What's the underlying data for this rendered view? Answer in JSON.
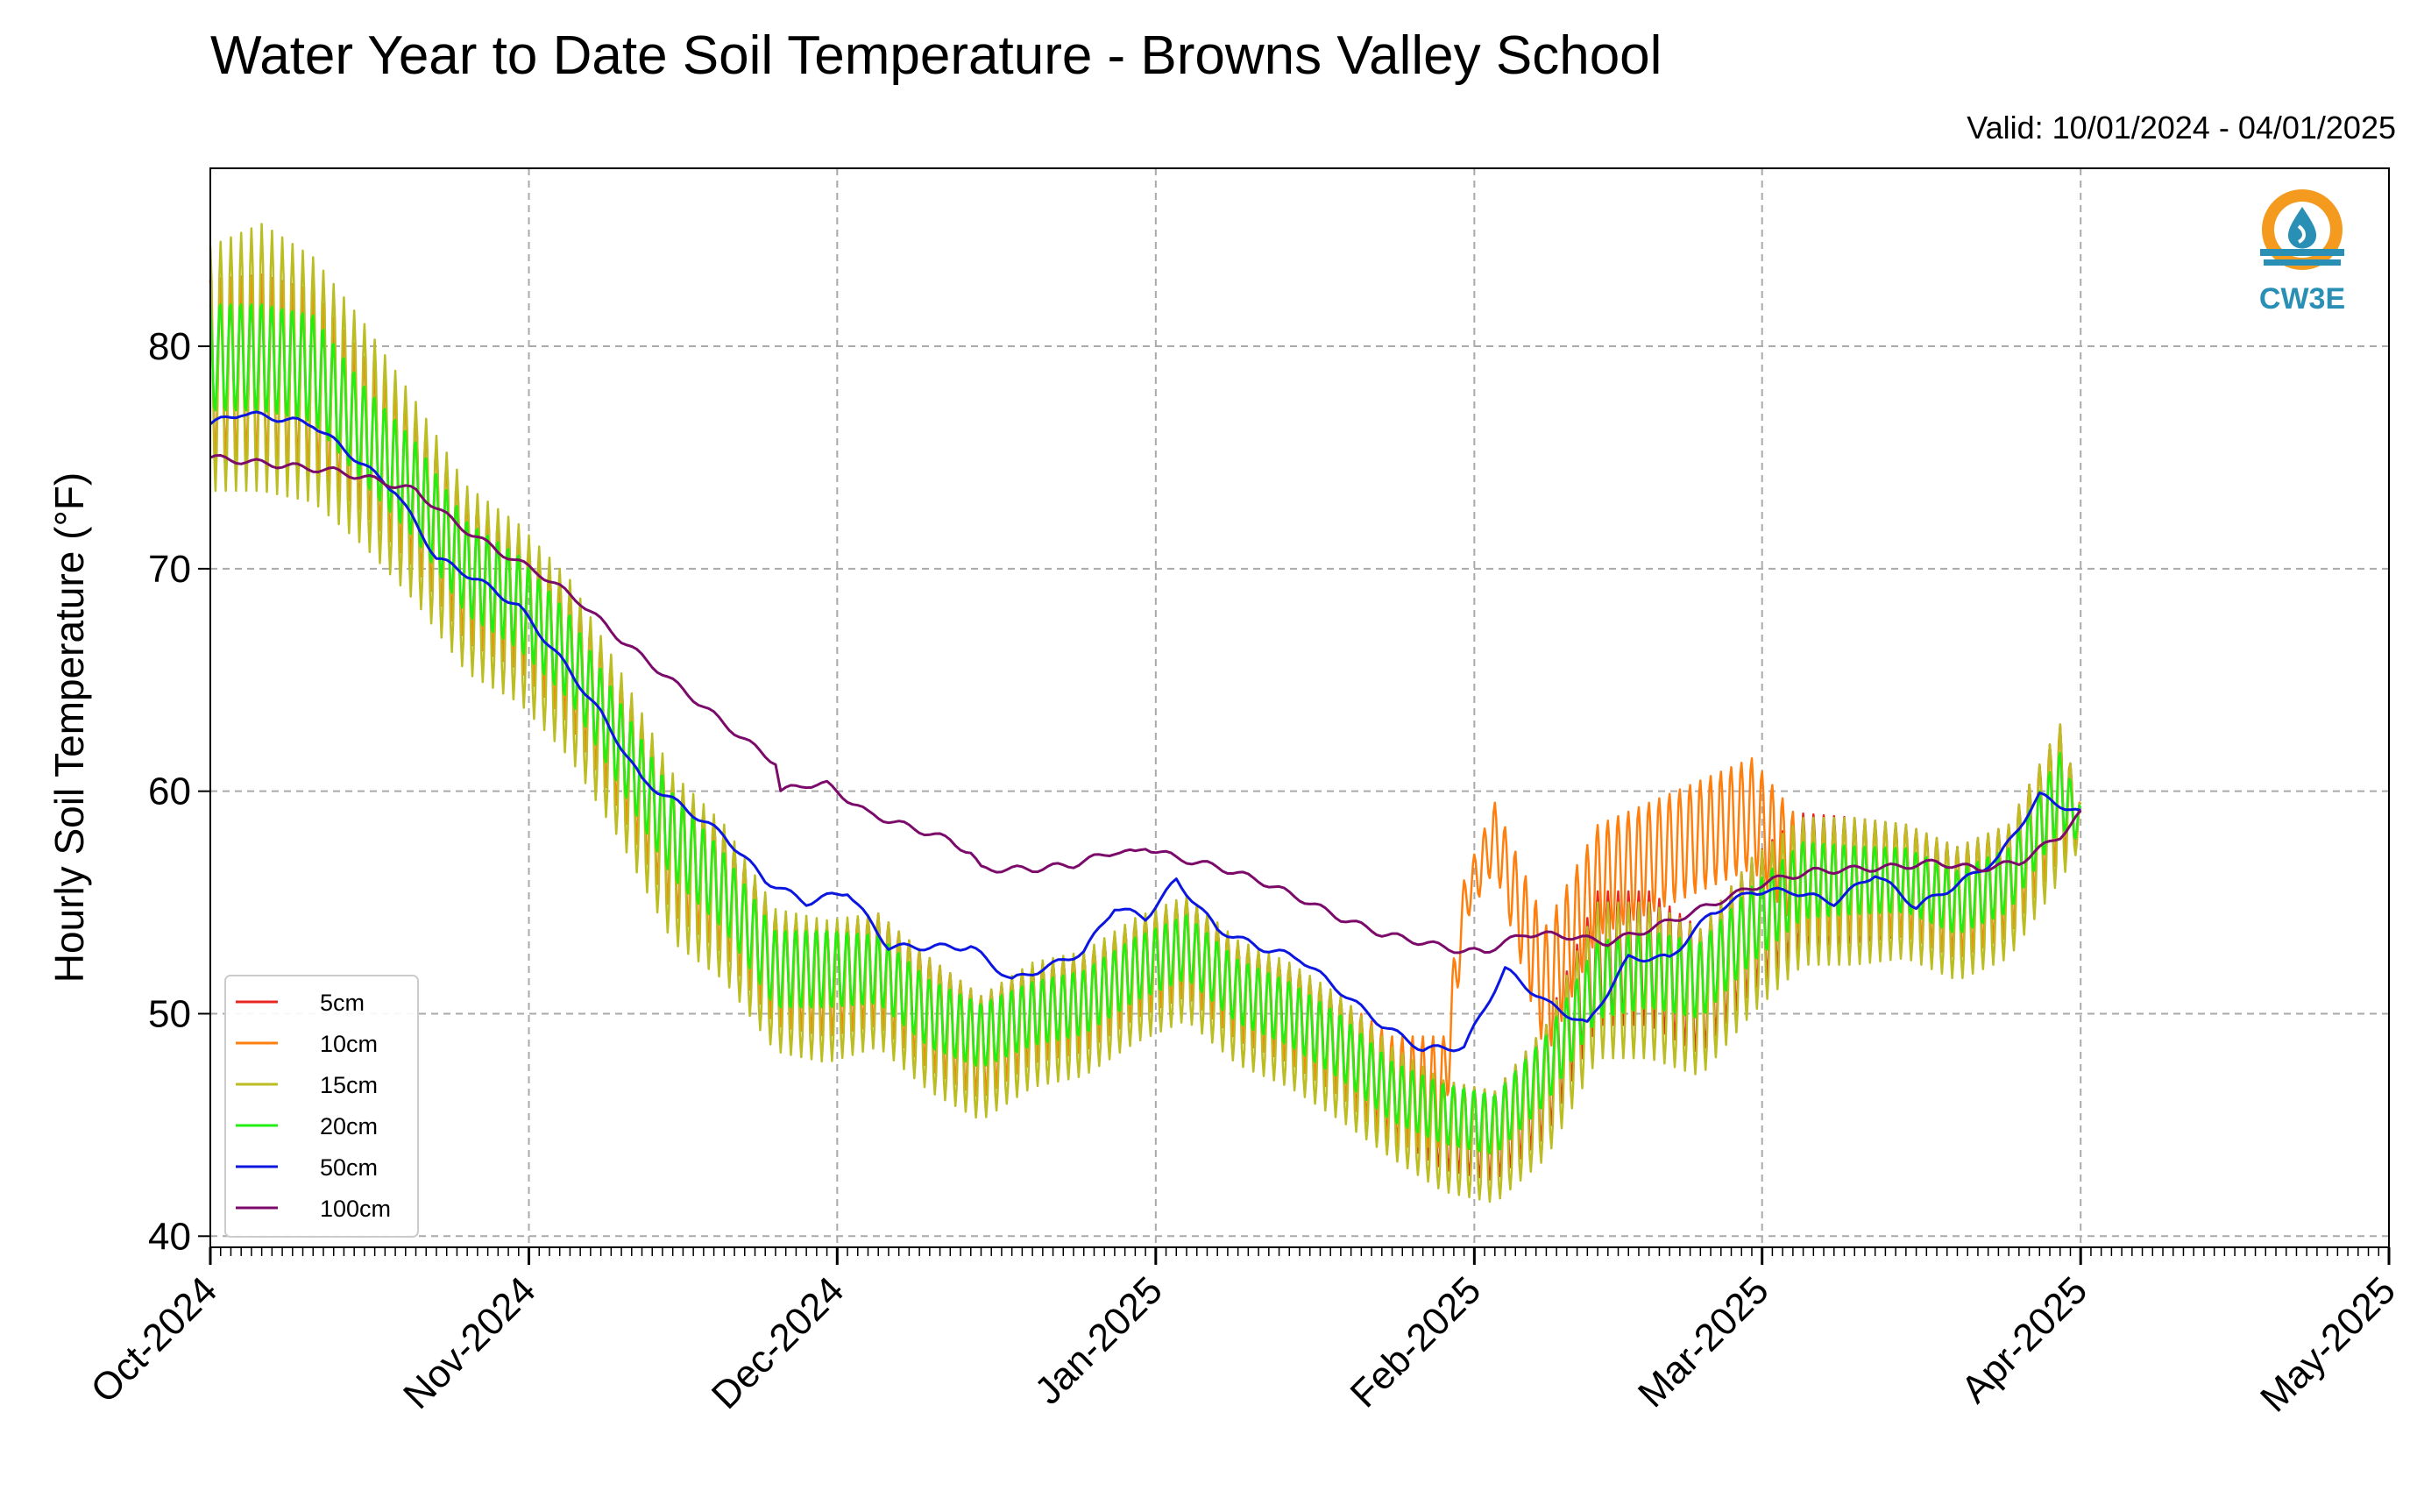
{
  "header": {
    "title": "Water Year to Date Soil Temperature - Browns Valley School",
    "valid": "Valid: 10/01/2024 - 04/01/2025"
  },
  "logo": {
    "text": "CW3E",
    "icon": "water-drop-sun-logo",
    "colors": [
      "#f39a1f",
      "#2a8fb5"
    ]
  },
  "chart_data": {
    "type": "line",
    "title": "Water Year to Date Soil Temperature - Browns Valley School",
    "ylabel": "Hourly Soil Temperature (°F)",
    "xlabel": "",
    "ylim": [
      39.5,
      88
    ],
    "xlim": [
      "2024-10-01",
      "2025-05-01"
    ],
    "yticks": [
      40,
      50,
      60,
      70,
      80
    ],
    "xticks": [
      "Oct-2024",
      "Nov-2024",
      "Dec-2024",
      "Jan-2025",
      "Feb-2025",
      "Mar-2025",
      "Apr-2025",
      "May-2025"
    ],
    "grid": true,
    "legend_position": "lower-left",
    "x_unit": "day of water year (0 = Oct 1, 2024)",
    "series": [
      {
        "name": "5cm",
        "color": "#e8251f",
        "x": [
          0,
          5,
          10,
          15,
          20,
          25,
          30,
          35,
          40,
          45,
          50,
          55,
          60,
          65,
          70,
          75,
          80,
          85,
          90,
          95,
          100,
          105,
          110,
          115,
          120,
          125,
          130,
          135,
          140,
          145,
          150,
          155,
          160,
          165,
          170,
          175,
          180,
          182
        ],
        "mean": [
          79,
          79,
          78.5,
          76,
          73.5,
          70,
          68.5,
          66,
          62,
          57.5,
          55.5,
          52,
          51.5,
          52,
          50,
          48.5,
          50,
          50.5,
          52,
          53,
          51,
          50,
          48.5,
          46.5,
          45,
          44.5,
          47,
          52.5,
          52.5,
          51,
          54,
          56,
          56,
          56,
          55,
          56,
          60,
          58.5
        ],
        "amp": [
          4,
          4.2,
          4,
          3.5,
          3.5,
          3.3,
          3,
          3,
          3,
          3,
          2.8,
          2.5,
          2.5,
          2.5,
          2.5,
          2.3,
          2.2,
          2.2,
          2.2,
          2.2,
          2.2,
          2.2,
          2.2,
          2,
          2,
          2,
          2.5,
          3,
          3,
          2.8,
          3,
          3,
          2.8,
          2.5,
          2.5,
          2.5,
          3,
          1
        ]
      },
      {
        "name": "10cm",
        "color": "#ff7f0e",
        "x": [
          0,
          5,
          10,
          15,
          20,
          25,
          30,
          35,
          40,
          45,
          50,
          55,
          60,
          65,
          70,
          75,
          80,
          85,
          90,
          95,
          100,
          105,
          110,
          115,
          120,
          122,
          125,
          130,
          135,
          140,
          145,
          150,
          155,
          160,
          165,
          170,
          175,
          180,
          182
        ],
        "mean": [
          79,
          79,
          78.5,
          76,
          73.5,
          70,
          68.5,
          66,
          62,
          57.5,
          55.5,
          52,
          51.5,
          52,
          50,
          48.5,
          50,
          50.5,
          52,
          53,
          51,
          50,
          48.5,
          46.5,
          46.5,
          55,
          58,
          51,
          56,
          57,
          58,
          59,
          56,
          56,
          56,
          55,
          56,
          60,
          58.5
        ],
        "amp": [
          4,
          4.2,
          4,
          3.5,
          3.5,
          3.3,
          3,
          3,
          3,
          3,
          2.8,
          2.5,
          2.5,
          2.5,
          2.5,
          2.3,
          2.2,
          2.2,
          2.2,
          2.2,
          2.2,
          2.2,
          2.2,
          2.5,
          2.5,
          1,
          1.5,
          3,
          2.5,
          2.5,
          2.5,
          2.5,
          2.5,
          2.5,
          2.5,
          2.5,
          2.5,
          3,
          1
        ]
      },
      {
        "name": "15cm",
        "color": "#bcbd22",
        "x": [
          0,
          5,
          10,
          15,
          20,
          25,
          30,
          35,
          40,
          45,
          50,
          55,
          60,
          65,
          70,
          75,
          80,
          85,
          90,
          95,
          100,
          105,
          110,
          115,
          120,
          125,
          130,
          135,
          140,
          145,
          150,
          155,
          160,
          165,
          170,
          175,
          180,
          182
        ],
        "mean": [
          79,
          79.5,
          78.5,
          76,
          73,
          69.5,
          68,
          65.5,
          61.5,
          57,
          55,
          51.5,
          51,
          51.5,
          49.5,
          48,
          49.5,
          50,
          51.5,
          52.5,
          50.5,
          49.5,
          48,
          46,
          44.5,
          44,
          46.5,
          51.5,
          51.5,
          50.5,
          53.5,
          55.5,
          55.5,
          55.5,
          54.5,
          55.5,
          59.5,
          58.5
        ],
        "amp": [
          5.5,
          6,
          5.5,
          5,
          4.5,
          4.2,
          4,
          4,
          3.8,
          3.8,
          3.5,
          3.2,
          3.2,
          3,
          3,
          2.8,
          2.8,
          2.8,
          2.8,
          2.8,
          2.8,
          2.8,
          2.8,
          2.5,
          2.5,
          2.5,
          3,
          3.5,
          3.5,
          3.3,
          3.5,
          3.3,
          3.3,
          3,
          3,
          3,
          3.5,
          1
        ]
      },
      {
        "name": "20cm",
        "color": "#22ee11",
        "x": [
          0,
          5,
          10,
          15,
          20,
          25,
          30,
          35,
          40,
          45,
          50,
          55,
          60,
          65,
          70,
          75,
          80,
          85,
          90,
          95,
          100,
          105,
          110,
          115,
          120,
          125,
          130,
          135,
          140,
          145,
          150,
          155,
          160,
          165,
          170,
          175,
          180,
          182
        ],
        "mean": [
          79.5,
          79.5,
          79,
          76,
          73.5,
          70,
          68.5,
          66,
          62,
          58,
          55.5,
          52,
          52,
          52,
          50,
          49,
          50,
          50.5,
          52,
          53,
          51,
          50,
          48.5,
          46.5,
          45.5,
          45,
          47.5,
          51.5,
          52,
          51.5,
          54,
          56,
          56,
          56,
          55,
          56,
          60,
          58.5
        ],
        "amp": [
          2.5,
          2.5,
          2.5,
          2.3,
          2.3,
          2.2,
          2.2,
          2,
          2,
          2,
          1.8,
          1.8,
          1.8,
          1.6,
          1.6,
          1.5,
          1.5,
          1.5,
          1.5,
          1.5,
          1.5,
          1.5,
          1.5,
          1.4,
          1.4,
          1.4,
          1.6,
          1.8,
          1.8,
          1.8,
          1.8,
          1.8,
          1.6,
          1.5,
          1.5,
          1.5,
          1.8,
          0.8
        ]
      },
      {
        "name": "50cm",
        "color": "#0b16e0",
        "x": [
          0,
          3,
          6,
          10,
          14,
          18,
          22,
          26,
          30,
          34,
          38,
          42,
          46,
          50,
          54,
          58,
          62,
          66,
          70,
          74,
          78,
          82,
          85,
          88,
          91,
          94,
          98,
          102,
          106,
          110,
          114,
          118,
          122,
          126,
          130,
          134,
          138,
          142,
          146,
          150,
          154,
          158,
          162,
          166,
          170,
          174,
          178,
          182
        ],
        "y": [
          76.5,
          77,
          76.8,
          76.5,
          75,
          73.5,
          70.5,
          69.5,
          68.3,
          66,
          63.5,
          60.5,
          59.3,
          58,
          56,
          55,
          55.5,
          53,
          53,
          53,
          51.5,
          52.2,
          52.8,
          54.8,
          54.3,
          56,
          53.8,
          53,
          52.5,
          51,
          49.5,
          48.4,
          48.5,
          52,
          50.5,
          49.5,
          52.5,
          52.5,
          54.5,
          55.5,
          55.5,
          55,
          56.3,
          54.8,
          55.8,
          57,
          59.8,
          59
        ]
      },
      {
        "name": "100cm",
        "color": "#7b0a6b",
        "x": [
          0,
          4,
          8,
          12,
          16,
          20,
          24,
          28,
          32,
          36,
          40,
          44,
          48,
          52,
          55,
          55.5,
          58,
          60,
          64,
          68,
          72,
          74,
          75,
          80,
          84,
          88,
          90,
          91,
          94,
          98,
          102,
          106,
          110,
          114,
          118,
          122,
          124,
          126,
          128,
          132,
          136,
          140,
          144,
          148,
          152,
          156,
          160,
          164,
          168,
          172,
          176,
          180,
          182
        ],
        "y": [
          75,
          74.8,
          74.6,
          74.4,
          74,
          73.5,
          72,
          70.8,
          69.8,
          68.5,
          66.8,
          65.3,
          63.8,
          62.3,
          61.3,
          60,
          60.3,
          60.3,
          59,
          58.4,
          57.8,
          57.2,
          56.5,
          56.5,
          56.7,
          57.3,
          57.2,
          57.5,
          57,
          56.6,
          56,
          55.2,
          54.3,
          53.6,
          53.2,
          52.8,
          52.8,
          53.2,
          53.6,
          53.5,
          53.2,
          53.8,
          54.5,
          55.3,
          56,
          56.4,
          56.5,
          56.6,
          56.8,
          56.5,
          56.8,
          58,
          59
        ]
      }
    ]
  },
  "legend": [
    {
      "label": "5cm",
      "color": "#e8251f"
    },
    {
      "label": "10cm",
      "color": "#ff7f0e"
    },
    {
      "label": "15cm",
      "color": "#bcbd22"
    },
    {
      "label": "20cm",
      "color": "#22ee11"
    },
    {
      "label": "50cm",
      "color": "#0b16e0"
    },
    {
      "label": "100cm",
      "color": "#7b0a6b"
    }
  ]
}
